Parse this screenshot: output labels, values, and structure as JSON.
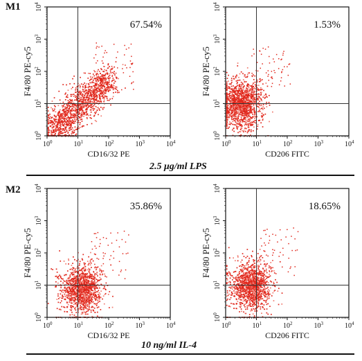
{
  "figure": {
    "row1": {
      "label": "M1",
      "caption": "2.5 μg/ml LPS"
    },
    "row2": {
      "label": "M2",
      "caption": "10 ng/ml IL-4"
    }
  },
  "colors": {
    "dots": "#e0261b",
    "dots_light": "#f07a6e",
    "axes": "#111111",
    "quadrant_lines": "#333333"
  },
  "chart_data": [
    {
      "type": "scatter",
      "id": "m1-cd1632",
      "xlabel": "CD16/32 PE",
      "ylabel": "F4/80 PE-cy5",
      "scale": "log",
      "xlim": [
        1,
        10000
      ],
      "ylim": [
        1,
        10000
      ],
      "x_ticks": [
        "10",
        "1",
        "2",
        "3",
        "4"
      ],
      "y_ticks": [
        "10",
        "1",
        "2",
        "3",
        "4"
      ],
      "quadrant_x": 10,
      "quadrant_y": 10,
      "annotation": "67.54%",
      "population": {
        "center_decades": [
          1.2,
          1.1
        ],
        "elongated": true,
        "upper_right_fraction": 0.6754,
        "events": 1500
      }
    },
    {
      "type": "scatter",
      "id": "m1-cd206",
      "xlabel": "CD206 FITC",
      "ylabel": "F4/80 PE-cy5",
      "scale": "log",
      "xlim": [
        1,
        10000
      ],
      "ylim": [
        1,
        10000
      ],
      "x_ticks": [
        "10",
        "1",
        "2",
        "3",
        "4"
      ],
      "y_ticks": [
        "10",
        "1",
        "2",
        "3",
        "4"
      ],
      "quadrant_x": 10,
      "quadrant_y": 10,
      "annotation": "1.53%",
      "population": {
        "center_decades": [
          0.5,
          1.0
        ],
        "elongated": false,
        "upper_right_fraction": 0.0153,
        "events": 1400
      }
    },
    {
      "type": "scatter",
      "id": "m2-cd1632",
      "xlabel": "CD16/32 PE",
      "ylabel": "F4/80 PE-cy5",
      "scale": "log",
      "xlim": [
        1,
        10000
      ],
      "ylim": [
        1,
        10000
      ],
      "x_ticks": [
        "10",
        "1",
        "2",
        "3",
        "4"
      ],
      "y_ticks": [
        "10",
        "1",
        "2",
        "3",
        "4"
      ],
      "quadrant_x": 10,
      "quadrant_y": 10,
      "annotation": "35.86%",
      "population": {
        "center_decades": [
          1.1,
          0.9
        ],
        "elongated": false,
        "upper_right_fraction": 0.3586,
        "events": 1300
      }
    },
    {
      "type": "scatter",
      "id": "m2-cd206",
      "xlabel": "CD206 FITC",
      "ylabel": "F4/80 PE-cy5",
      "scale": "log",
      "xlim": [
        1,
        10000
      ],
      "ylim": [
        1,
        10000
      ],
      "x_ticks": [
        "10",
        "1",
        "2",
        "3",
        "4"
      ],
      "y_ticks": [
        "10",
        "1",
        "2",
        "3",
        "4"
      ],
      "quadrant_x": 10,
      "quadrant_y": 10,
      "annotation": "18.65%",
      "population": {
        "center_decades": [
          0.8,
          1.0
        ],
        "elongated": false,
        "upper_right_fraction": 0.1865,
        "events": 1300
      }
    }
  ]
}
